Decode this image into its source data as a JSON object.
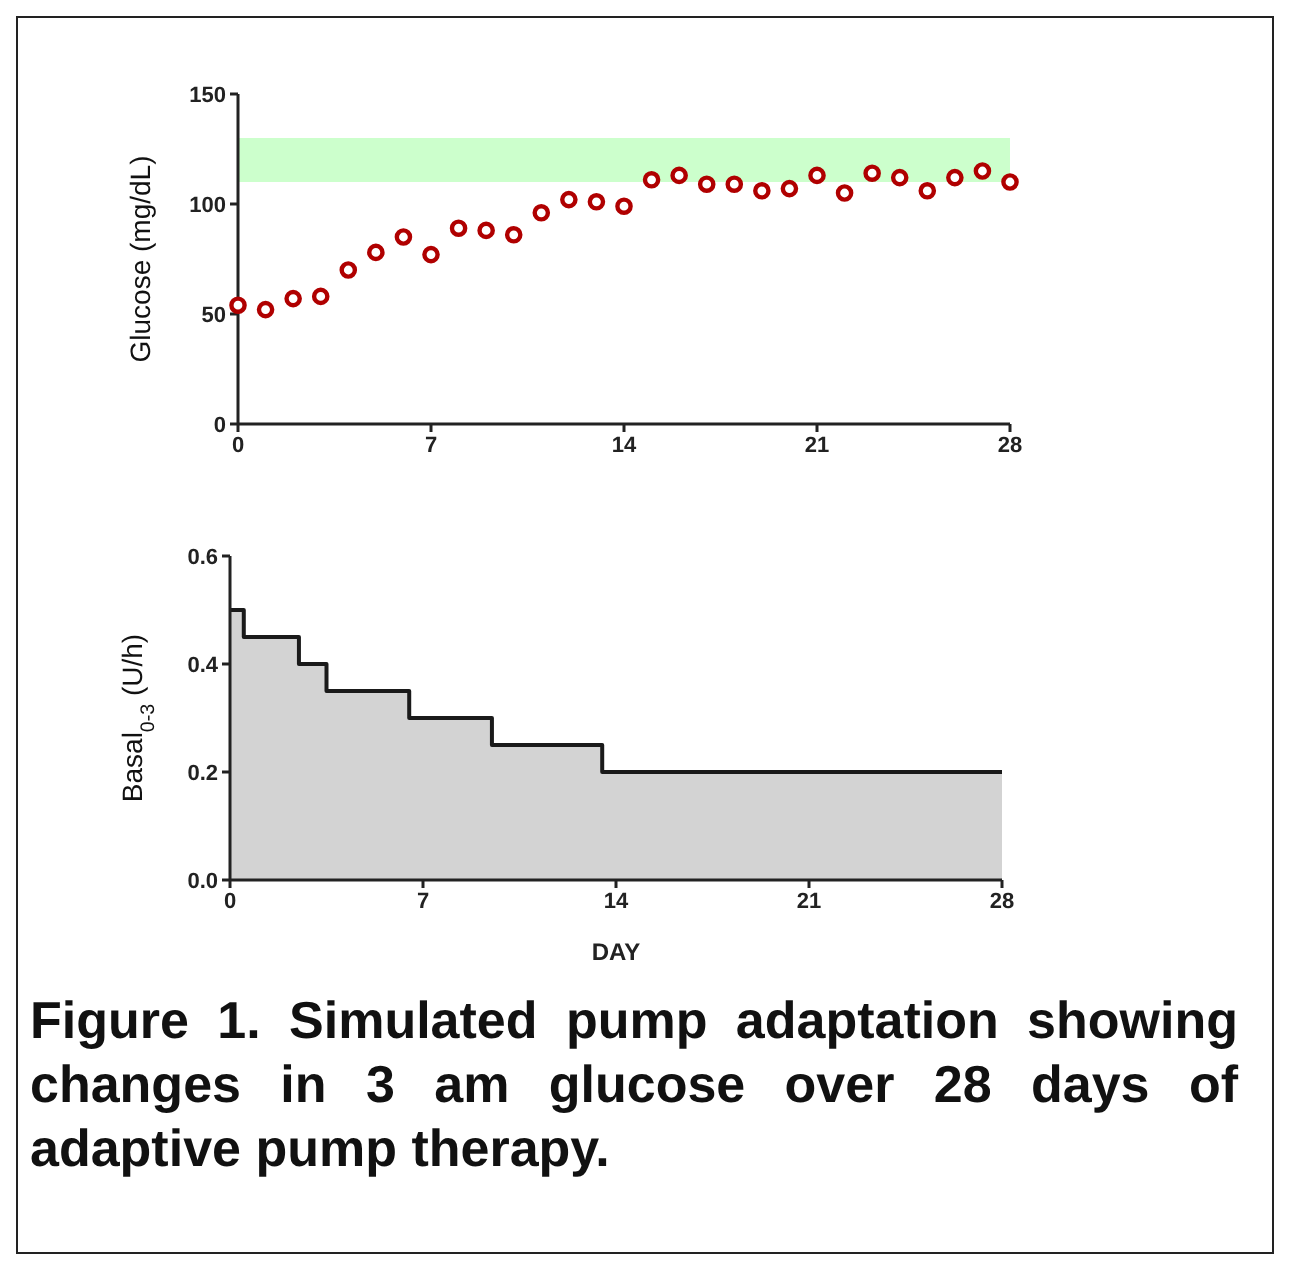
{
  "chart_data": [
    {
      "type": "scatter",
      "ylabel": "Glucose (mg/dL)",
      "x": [
        0,
        1,
        2,
        3,
        4,
        5,
        6,
        7,
        8,
        9,
        10,
        11,
        12,
        13,
        14,
        15,
        16,
        17,
        18,
        19,
        20,
        21,
        22,
        23,
        24,
        25,
        26,
        27,
        28
      ],
      "series": [
        {
          "color": "#b00000",
          "values": [
            54,
            52,
            57,
            58,
            70,
            78,
            85,
            77,
            89,
            88,
            86,
            96,
            102,
            101,
            99,
            111,
            113,
            109,
            109,
            106,
            107,
            113,
            105,
            114,
            112,
            106,
            112,
            115,
            110
          ]
        }
      ],
      "marker": "circle",
      "xlim": [
        0,
        28
      ],
      "xticks": [
        0,
        7,
        14,
        21,
        28
      ],
      "ylim": [
        0,
        150
      ],
      "yticks": [
        0,
        50,
        100,
        150
      ],
      "bands": [
        {
          "axis": "y",
          "from": 110,
          "to": 130,
          "color": "#ccffcc"
        }
      ]
    },
    {
      "type": "area",
      "xlabel": "DAY",
      "ylabel": "Basal$_{0-3}$ (U/h)",
      "x": [
        0,
        0.5,
        0.5,
        2.5,
        2.5,
        3.5,
        3.5,
        6.5,
        6.5,
        9.5,
        9.5,
        13.5,
        13.5,
        28
      ],
      "series": [
        {
          "color": "#1a1a1a",
          "values": [
            0.5,
            0.5,
            0.45,
            0.45,
            0.4,
            0.4,
            0.35,
            0.35,
            0.3,
            0.3,
            0.25,
            0.25,
            0.2,
            0.2
          ]
        }
      ],
      "xlim": [
        0,
        28
      ],
      "xticks": [
        0,
        7,
        14,
        21,
        28
      ],
      "ylim": [
        0,
        0.6
      ],
      "yticks": [
        {
          "value": 0,
          "label": "0.0"
        },
        {
          "value": 0.2,
          "label": "0.2"
        },
        {
          "value": 0.4,
          "label": "0.4"
        },
        {
          "value": 0.6,
          "label": "0.6"
        }
      ],
      "annotations": [
        "Figure 1. Simulated pump adaptation showing changes in 3 am glucose over 28 days of adaptive pump therapy."
      ]
    }
  ]
}
